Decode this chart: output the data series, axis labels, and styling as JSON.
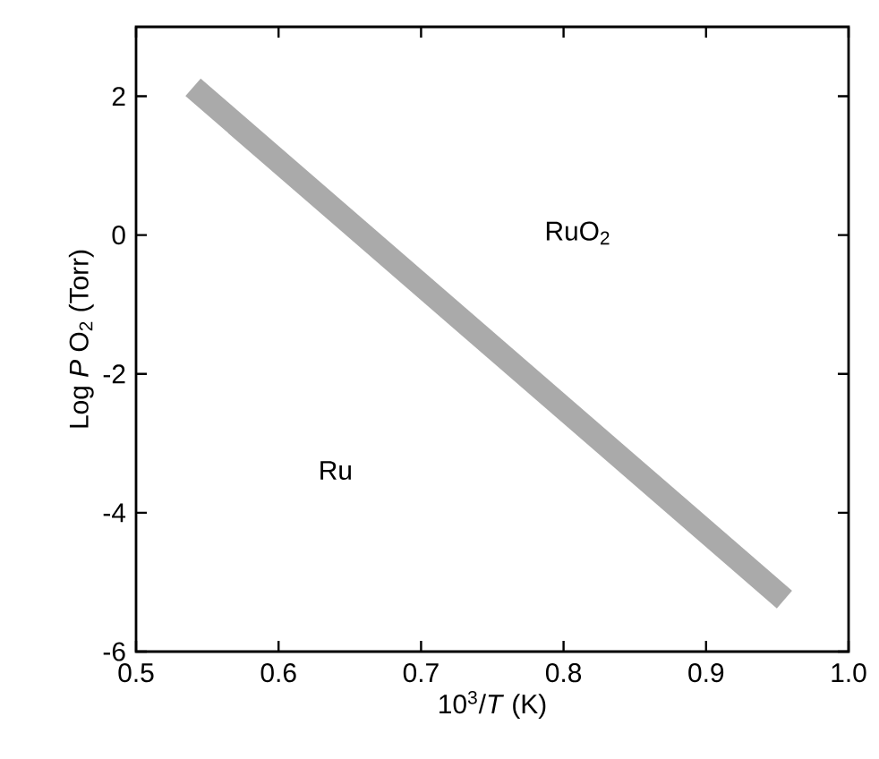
{
  "chart_data": {
    "type": "line",
    "xlabel": "10$^{3}$/*T* (K)",
    "ylabel": "Log *P* O$_{2}$ (Torr)",
    "xlim": [
      0.5,
      1.0
    ],
    "ylim": [
      -6,
      3
    ],
    "xticks": [
      0.5,
      0.6,
      0.7,
      0.8,
      0.9,
      {
        "value": 1.0,
        "label": "1.0"
      }
    ],
    "yticks": [
      -6,
      -4,
      -2,
      0,
      2
    ],
    "x": [
      0.54,
      0.955
    ],
    "series": [
      {
        "color": "#aaaaaa",
        "values": [
          2.13,
          -5.25
        ],
        "line_style": "solid"
      }
    ],
    "annotations": [
      "Ru",
      "RuO$_{2}$"
    ],
    "grid": false,
    "marker": "none"
  }
}
